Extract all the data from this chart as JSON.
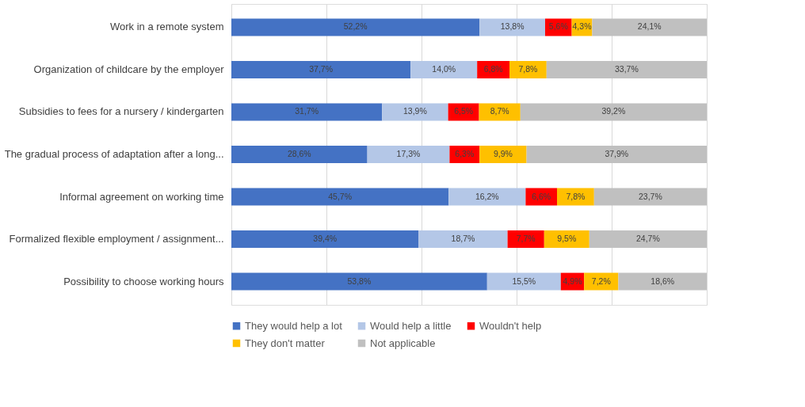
{
  "chart_data": {
    "type": "bar",
    "orientation": "horizontal",
    "stacked": true,
    "categories": [
      "Work in a remote system",
      "Organization of childcare by the employer",
      "Subsidies to fees for a nursery / kindergarten",
      "The gradual process of adaptation after a long...",
      "Informal agreement on working time",
      "Formalized flexible employment / assignment...",
      "Possibility to choose working hours"
    ],
    "series": [
      {
        "name": "They would help a lot",
        "color": "#4472c4",
        "values": [
          52.2,
          37.7,
          31.7,
          28.6,
          45.7,
          39.4,
          53.8
        ],
        "value_labels": [
          "52,2%",
          "37,7%",
          "31,7%",
          "28,6%",
          "45,7%",
          "39,4%",
          "53,8%"
        ]
      },
      {
        "name": "Would help a little",
        "color": "#b4c7e7",
        "values": [
          13.8,
          14.0,
          13.9,
          17.3,
          16.2,
          18.7,
          15.5
        ],
        "value_labels": [
          "13,8%",
          "14,0%",
          "13,9%",
          "17,3%",
          "16,2%",
          "18,7%",
          "15,5%"
        ]
      },
      {
        "name": "Wouldn't help",
        "color": "#ff0000",
        "values": [
          5.6,
          6.8,
          6.5,
          6.3,
          6.6,
          7.7,
          4.9
        ],
        "value_labels": [
          "5,6%",
          "6,8%",
          "6,5%",
          "6,3%",
          "6,6%",
          "7,7%",
          "4,9%"
        ]
      },
      {
        "name": "They don't matter",
        "color": "#ffc000",
        "values": [
          4.3,
          7.8,
          8.7,
          9.9,
          7.8,
          9.5,
          7.2
        ],
        "value_labels": [
          "4,3%",
          "7,8%",
          "8,7%",
          "9,9%",
          "7,8%",
          "9,5%",
          "7,2%"
        ]
      },
      {
        "name": "Not applicable",
        "color": "#c0c0c0",
        "values": [
          24.1,
          33.7,
          39.2,
          37.9,
          23.7,
          24.7,
          18.6
        ],
        "value_labels": [
          "24,1%",
          "33,7%",
          "39,2%",
          "37,9%",
          "23,7%",
          "24,7%",
          "18,6%"
        ]
      }
    ],
    "xlim": [
      0,
      100
    ],
    "xticks": [
      {
        "value": 0,
        "label": null
      },
      {
        "value": 20,
        "label": null
      },
      {
        "value": 40,
        "label": null
      },
      {
        "value": 60,
        "label": null
      },
      {
        "value": 80,
        "label": null
      },
      {
        "value": 100,
        "label": null
      }
    ],
    "tick_labels": "y",
    "grid": "x",
    "legend": "bottom"
  }
}
